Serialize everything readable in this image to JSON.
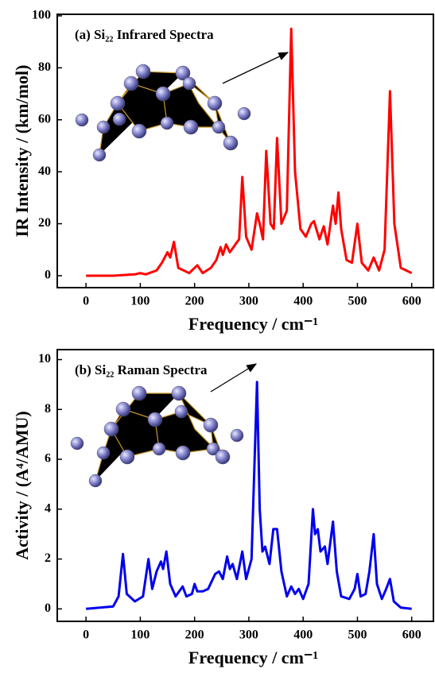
{
  "chart_data": [
    {
      "type": "line",
      "title": "(a) Si₂₂ Infrared Spectra",
      "x_label": "Frequency / cm⁻¹",
      "y_label": "IR Intensity / (km/mol)",
      "color": "#ff0000",
      "xlim": [
        -53,
        640
      ],
      "xticks": [
        0,
        100,
        200,
        300,
        400,
        500,
        600
      ],
      "ylim": [
        -4.6,
        100.6
      ],
      "yticks": [
        0,
        20,
        40,
        60,
        80,
        100
      ],
      "x": [
        0,
        50,
        90,
        100,
        110,
        130,
        140,
        150,
        155,
        162,
        170,
        190,
        205,
        215,
        230,
        240,
        248,
        252,
        258,
        265,
        275,
        282,
        288,
        295,
        305,
        315,
        320,
        326,
        332,
        340,
        346,
        352,
        360,
        370,
        378,
        385,
        395,
        405,
        415,
        420,
        430,
        438,
        445,
        455,
        460,
        465,
        470,
        480,
        490,
        500,
        508,
        520,
        530,
        540,
        550,
        560,
        568,
        580,
        600
      ],
      "values": [
        0,
        0,
        0.5,
        1,
        0.5,
        2,
        5,
        9,
        7,
        13,
        3,
        1,
        4,
        1,
        3,
        6,
        11,
        8,
        12,
        9,
        12,
        14,
        38,
        15,
        10,
        24,
        20,
        14,
        48,
        20,
        18,
        53,
        20,
        25,
        95,
        40,
        18,
        15,
        20,
        21,
        14,
        19,
        12,
        27,
        20,
        32,
        18,
        6,
        5,
        20,
        5,
        2,
        7,
        2,
        10,
        71,
        20,
        3,
        1
      ]
    },
    {
      "type": "line",
      "title": "(b) Si₂₂ Raman Spectra",
      "x_label": "Frequency / cm⁻¹",
      "y_label": "Activity / (A⁴/AMU)",
      "color": "#0000ee",
      "xlim": [
        -53,
        640
      ],
      "xticks": [
        0,
        100,
        200,
        300,
        400,
        500,
        600
      ],
      "ylim": [
        -0.5,
        10.4
      ],
      "yticks": [
        0,
        2,
        4,
        6,
        8,
        10
      ],
      "x": [
        0,
        50,
        60,
        68,
        75,
        90,
        105,
        115,
        122,
        130,
        138,
        142,
        148,
        155,
        165,
        178,
        185,
        195,
        200,
        205,
        215,
        225,
        238,
        245,
        252,
        260,
        265,
        270,
        278,
        288,
        295,
        305,
        315,
        320,
        325,
        330,
        338,
        345,
        352,
        360,
        370,
        378,
        385,
        392,
        400,
        410,
        418,
        422,
        427,
        432,
        440,
        445,
        455,
        462,
        470,
        485,
        495,
        500,
        506,
        515,
        522,
        530,
        536,
        545,
        553,
        560,
        567,
        580,
        600
      ],
      "values": [
        0,
        0.1,
        0.5,
        2.2,
        0.6,
        0.3,
        0.5,
        2.0,
        0.8,
        1.5,
        1.9,
        1.6,
        2.3,
        1.0,
        0.5,
        0.9,
        0.5,
        0.6,
        1.0,
        0.7,
        0.7,
        0.8,
        1.4,
        1.5,
        1.2,
        2.1,
        1.6,
        1.8,
        1.2,
        2.3,
        1.2,
        2.0,
        9.1,
        4.0,
        2.3,
        2.5,
        1.8,
        3.2,
        3.2,
        1.5,
        0.5,
        0.9,
        0.6,
        0.8,
        0.4,
        1.0,
        4.0,
        3.0,
        3.2,
        2.3,
        2.5,
        1.8,
        3.5,
        1.5,
        0.5,
        0.4,
        0.8,
        1.4,
        0.5,
        0.6,
        1.5,
        3.0,
        1.0,
        0.4,
        0.8,
        1.2,
        0.3,
        0.05,
        0
      ]
    }
  ]
}
